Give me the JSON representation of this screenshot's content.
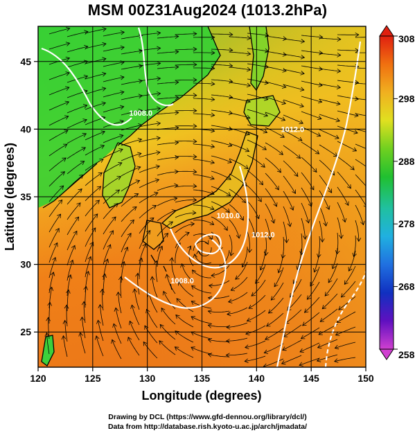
{
  "title": "MSM 00Z31Aug2024 (1013.2hPa)",
  "credits": {
    "line1": "Drawing by DCL (https://www.gfd-dennou.org/library/dcl/)",
    "line2": "Data from http://database.rish.kyoto-u.ac.jp/arch/jmadata/"
  },
  "chart_data": {
    "type": "heatmap",
    "xlabel": "Longitude (degrees)",
    "ylabel": "Latitude  (degrees)",
    "xlim": [
      120,
      150
    ],
    "ylim": [
      22.4,
      47.6
    ],
    "xticks": [
      120,
      125,
      130,
      135,
      140,
      145,
      150
    ],
    "yticks": [
      25,
      30,
      35,
      40,
      45
    ],
    "grid": true,
    "colorbar": {
      "min": 258,
      "max": 308,
      "ticks": [
        258,
        268,
        278,
        288,
        298,
        308
      ],
      "colors": [
        "#d040d0",
        "#6010c0",
        "#1030c0",
        "#2080e0",
        "#20c0d0",
        "#20c080",
        "#20c020",
        "#80d020",
        "#e0e020",
        "#f0b020",
        "#f07010",
        "#e02010"
      ]
    },
    "contours": [
      {
        "label": "1008.0",
        "lon": 133.2,
        "lat": 28.6
      },
      {
        "label": "1008.0",
        "lon": 129.4,
        "lat": 41.0
      },
      {
        "label": "1010.0",
        "lon": 137.4,
        "lat": 33.4
      },
      {
        "label": "1012.0",
        "lon": 140.6,
        "lat": 32.0
      },
      {
        "label": "1012.0",
        "lon": 143.3,
        "lat": 39.8
      }
    ],
    "colors": {
      "land": "#2fcf2f",
      "warm": "#f0801c",
      "mid": "#f0c820",
      "coast": "#000000",
      "isobar": "#ffffff"
    }
  }
}
